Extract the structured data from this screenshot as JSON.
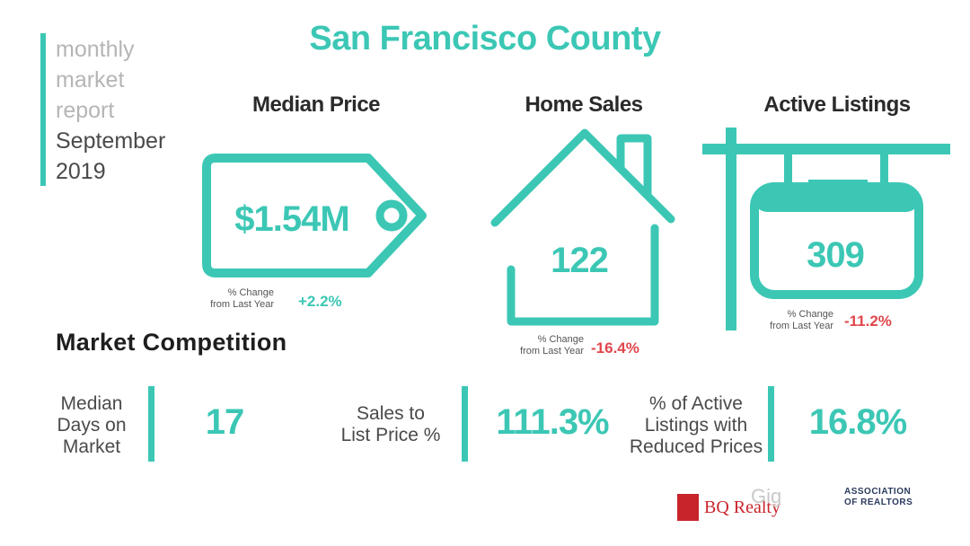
{
  "sidebar": {
    "lines": [
      "monthly",
      "market",
      "report"
    ],
    "month": "September",
    "year": "2019"
  },
  "title": "San Francisco County",
  "median_price": {
    "heading": "Median Price",
    "value": "$1.54M",
    "change_label_line1": "% Change",
    "change_label_line2": "from Last Year",
    "change_value": "+2.2%"
  },
  "home_sales": {
    "heading": "Home Sales",
    "value": "122",
    "change_label_line1": "% Change",
    "change_label_line2": "from Last Year",
    "change_value": "-16.4%"
  },
  "active_listings": {
    "heading": "Active Listings",
    "value": "309",
    "change_label_line1": "% Change",
    "change_label_line2": "from Last Year",
    "change_value": "-11.2%"
  },
  "market_competition": {
    "heading": "Market Competition",
    "metrics": [
      {
        "label_lines": [
          "Median",
          "Days on",
          "Market"
        ],
        "value": "17"
      },
      {
        "label_lines": [
          "Sales to",
          "List Price %"
        ],
        "value": "111.3%"
      },
      {
        "label_lines": [
          "% of Active",
          "Listings with",
          "Reduced Prices"
        ],
        "value": "16.8%"
      }
    ]
  },
  "footer": {
    "brokerage": "BQ Realty",
    "watermark": "Gig",
    "association_lines": [
      "ASSOCIATION",
      "OF REALTORS"
    ]
  },
  "colors": {
    "accent": "#3cc7b5",
    "negative": "#e0474c",
    "brand_red": "#c8242c"
  }
}
